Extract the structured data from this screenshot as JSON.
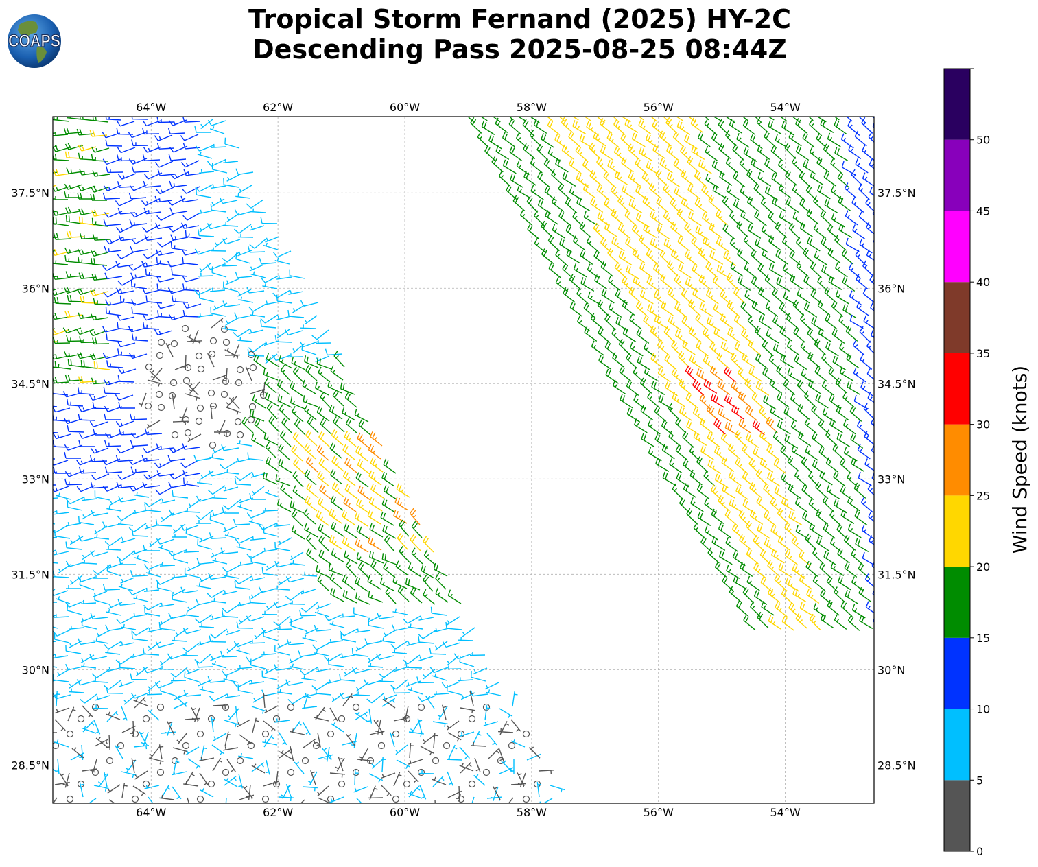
{
  "title": {
    "line1": "Tropical Storm Fernand (2025) HY-2C",
    "line2": "Descending Pass 2025-08-25 08:44Z"
  },
  "logo": {
    "text": "COAPS",
    "icon": "globe-logo-icon"
  },
  "map": {
    "lon_range": [
      -65.55,
      -52.6
    ],
    "lat_range": [
      27.9,
      38.7
    ],
    "lon_ticks": [
      {
        "value": -64,
        "label": "64°W"
      },
      {
        "value": -62,
        "label": "62°W"
      },
      {
        "value": -60,
        "label": "60°W"
      },
      {
        "value": -58,
        "label": "58°W"
      },
      {
        "value": -56,
        "label": "56°W"
      },
      {
        "value": -54,
        "label": "54°W"
      }
    ],
    "lat_ticks": [
      {
        "value": 37.5,
        "label": "37.5°N"
      },
      {
        "value": 36.0,
        "label": "36°N"
      },
      {
        "value": 34.5,
        "label": "34.5°N"
      },
      {
        "value": 33.0,
        "label": "33°N"
      },
      {
        "value": 31.5,
        "label": "31.5°N"
      },
      {
        "value": 30.0,
        "label": "30°N"
      },
      {
        "value": 28.5,
        "label": "28.5°N"
      }
    ],
    "grid": true
  },
  "colorbar": {
    "label": "Wind Speed (knots)",
    "ticks": [
      "0",
      "5",
      "10",
      "15",
      "20",
      "25",
      "30",
      "35",
      "40",
      "45",
      "50"
    ],
    "bins": [
      {
        "from": 0,
        "to": 5,
        "color": "#555555"
      },
      {
        "from": 5,
        "to": 10,
        "color": "#00bfff"
      },
      {
        "from": 10,
        "to": 15,
        "color": "#0033ff"
      },
      {
        "from": 15,
        "to": 20,
        "color": "#008c00"
      },
      {
        "from": 20,
        "to": 25,
        "color": "#ffd700"
      },
      {
        "from": 25,
        "to": 30,
        "color": "#ff8c00"
      },
      {
        "from": 30,
        "to": 35,
        "color": "#ff0000"
      },
      {
        "from": 35,
        "to": 40,
        "color": "#7f3a2a"
      },
      {
        "from": 40,
        "to": 45,
        "color": "#ff00ff"
      },
      {
        "from": 45,
        "to": 50,
        "color": "#8800bb"
      },
      {
        "from": 50,
        "to": 55,
        "color": "#2a0060"
      }
    ]
  }
}
